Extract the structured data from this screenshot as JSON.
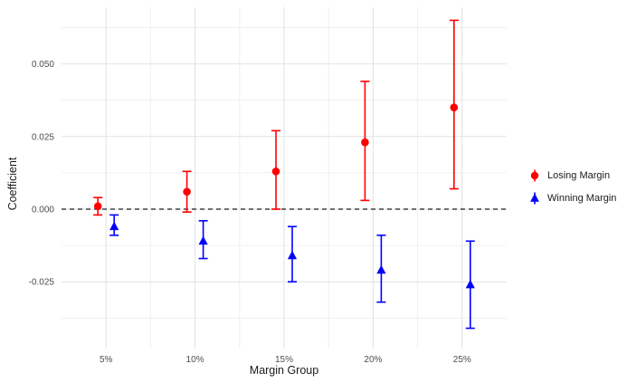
{
  "chart_data": {
    "type": "errorbar",
    "title": "",
    "xlabel": "Margin Group",
    "ylabel": "Coefficient",
    "categories": [
      "5%",
      "10%",
      "15%",
      "20%",
      "25%"
    ],
    "y_ticks": [
      0.05,
      0.025,
      0.0,
      -0.025
    ],
    "y_tick_labels": [
      "0.050",
      "0.025",
      "0.000",
      "-0.025"
    ],
    "y_minor_ticks": [
      0.0625,
      0.0375,
      0.0125,
      -0.0125,
      -0.0375
    ],
    "ylim": [
      -0.048,
      0.0695
    ],
    "zero_line": {
      "y": 0,
      "style": "dashed",
      "color": "#1a1a1a"
    },
    "grid": true,
    "legend_position": "right",
    "series": [
      {
        "name": "Losing Margin",
        "color": "#ff0000",
        "marker": "circle",
        "points": [
          {
            "x": "5%",
            "y": 0.001,
            "ymin": -0.002,
            "ymax": 0.004
          },
          {
            "x": "10%",
            "y": 0.006,
            "ymin": -0.001,
            "ymax": 0.013
          },
          {
            "x": "15%",
            "y": 0.013,
            "ymin": 0.0,
            "ymax": 0.027
          },
          {
            "x": "20%",
            "y": 0.023,
            "ymin": 0.003,
            "ymax": 0.044
          },
          {
            "x": "25%",
            "y": 0.035,
            "ymin": 0.007,
            "ymax": 0.065
          }
        ]
      },
      {
        "name": "Winning Margin",
        "color": "#0000ff",
        "marker": "triangle",
        "points": [
          {
            "x": "5%",
            "y": -0.006,
            "ymin": -0.009,
            "ymax": -0.002
          },
          {
            "x": "10%",
            "y": -0.011,
            "ymin": -0.017,
            "ymax": -0.004
          },
          {
            "x": "15%",
            "y": -0.016,
            "ymin": -0.025,
            "ymax": -0.006
          },
          {
            "x": "20%",
            "y": -0.021,
            "ymin": -0.032,
            "ymax": -0.009
          },
          {
            "x": "25%",
            "y": -0.026,
            "ymin": -0.041,
            "ymax": -0.011
          }
        ]
      }
    ]
  }
}
